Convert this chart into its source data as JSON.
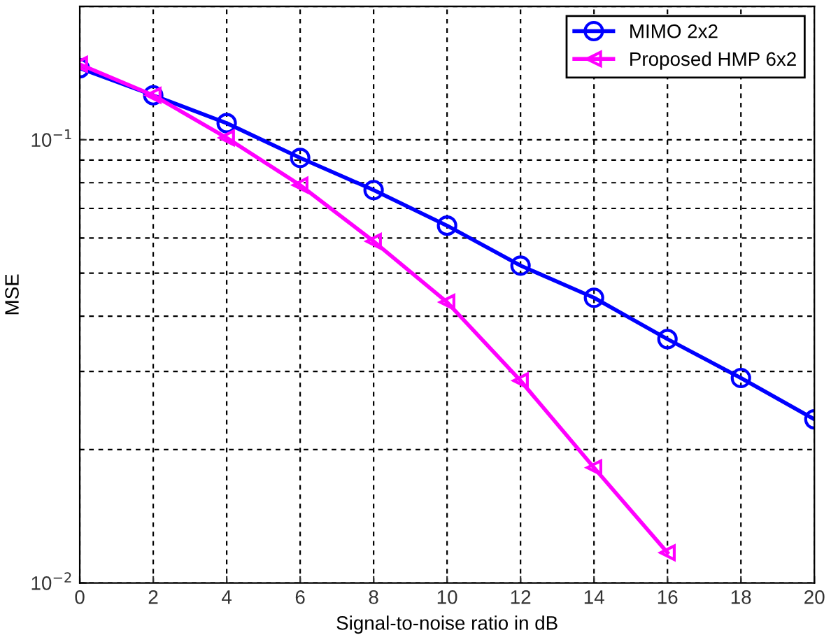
{
  "chart_data": {
    "type": "line",
    "xlabel": "Signal-to-noise ratio in dB",
    "ylabel": "MSE",
    "x": [
      0,
      2,
      4,
      6,
      8,
      10,
      12,
      14,
      16,
      18,
      20
    ],
    "series": [
      {
        "name": "MIMO 2x2",
        "color": "#0000ff",
        "marker": "circle",
        "values": [
          0.145,
          0.126,
          0.109,
          0.091,
          0.077,
          0.064,
          0.052,
          0.044,
          0.0355,
          0.029,
          0.0234
        ]
      },
      {
        "name": "Proposed HMP 6x2",
        "color": "#ff00ff",
        "marker": "triangle",
        "values": [
          0.148,
          0.126,
          0.101,
          0.079,
          0.059,
          0.043,
          0.0286,
          0.0182,
          0.0117,
          null,
          null
        ]
      }
    ],
    "log": "y",
    "xlim": [
      0,
      20
    ],
    "ylim": [
      0.01,
      0.2
    ],
    "xticks": [
      0,
      2,
      4,
      6,
      8,
      10,
      12,
      14,
      16,
      18,
      20
    ],
    "yticks": [
      {
        "value": 0.01,
        "label": "10$^{−2}$"
      },
      {
        "value": 0.1,
        "label": "10$^{−1}$"
      }
    ],
    "grid": true,
    "legend": "top right",
    "line_style": "solid"
  }
}
